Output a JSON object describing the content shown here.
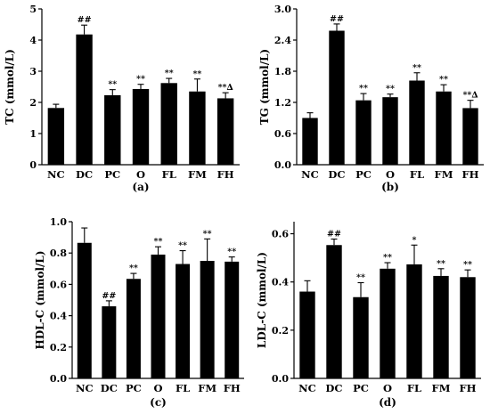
{
  "chart_data": [
    {
      "type": "bar",
      "panel_label": "(a)",
      "ylabel": "TC (mmol/L)",
      "categories": [
        "NC",
        "DC",
        "PC",
        "O",
        "FL",
        "FM",
        "FH"
      ],
      "values": [
        1.82,
        4.18,
        2.23,
        2.43,
        2.62,
        2.35,
        2.13
      ],
      "errors": [
        0.12,
        0.3,
        0.18,
        0.15,
        0.15,
        0.4,
        0.18
      ],
      "annotations": [
        "",
        "##",
        "**",
        "**",
        "**",
        "**",
        "**∆"
      ],
      "ylim": [
        0,
        5
      ],
      "yticks": [
        0,
        1,
        2,
        3,
        4,
        5
      ],
      "ytick_labels": [
        "0",
        "1",
        "2",
        "3",
        "4",
        "5"
      ]
    },
    {
      "type": "bar",
      "panel_label": "(b)",
      "ylabel": "TG (mmol/L)",
      "categories": [
        "NC",
        "DC",
        "PC",
        "O",
        "FL",
        "FM",
        "FH"
      ],
      "values": [
        0.9,
        2.58,
        1.24,
        1.3,
        1.62,
        1.41,
        1.09
      ],
      "errors": [
        0.1,
        0.13,
        0.13,
        0.06,
        0.15,
        0.13,
        0.15
      ],
      "annotations": [
        "",
        "##",
        "**",
        "**",
        "**",
        "**",
        "**∆"
      ],
      "ylim": [
        0,
        3
      ],
      "yticks": [
        0,
        0.6,
        1.2,
        1.8,
        2.4,
        3.0
      ],
      "ytick_labels": [
        "0.0",
        "0.6",
        "1.2",
        "1.8",
        "2.4",
        "3.0"
      ]
    },
    {
      "type": "bar",
      "panel_label": "(c)",
      "ylabel": "HDL-C (mmol/L)",
      "categories": [
        "NC",
        "DC",
        "PC",
        "O",
        "FL",
        "FM",
        "FH"
      ],
      "values": [
        0.865,
        0.46,
        0.635,
        0.79,
        0.73,
        0.75,
        0.745
      ],
      "errors": [
        0.095,
        0.035,
        0.035,
        0.05,
        0.085,
        0.14,
        0.03
      ],
      "annotations": [
        "",
        "##",
        "**",
        "**",
        "**",
        "**",
        "**"
      ],
      "ylim": [
        0,
        1.0
      ],
      "yticks": [
        0,
        0.2,
        0.4,
        0.6,
        0.8,
        1.0
      ],
      "ytick_labels": [
        "0.0",
        "0.2",
        "0.4",
        "0.6",
        "0.8",
        "1.0"
      ]
    },
    {
      "type": "bar",
      "panel_label": "(d)",
      "ylabel": "LDL-C (mmol/L)",
      "categories": [
        "NC",
        "DC",
        "PC",
        "O",
        "FL",
        "FM",
        "FH"
      ],
      "values": [
        0.36,
        0.553,
        0.337,
        0.455,
        0.473,
        0.425,
        0.42
      ],
      "errors": [
        0.045,
        0.025,
        0.06,
        0.025,
        0.08,
        0.03,
        0.03
      ],
      "annotations": [
        "",
        "##",
        "**",
        "**",
        "*",
        "**",
        "**"
      ],
      "ylim": [
        0,
        0.65
      ],
      "yticks": [
        0,
        0.2,
        0.4,
        0.6
      ],
      "ytick_labels": [
        "0.0",
        "0.2",
        "0.4",
        "0.6"
      ]
    }
  ]
}
